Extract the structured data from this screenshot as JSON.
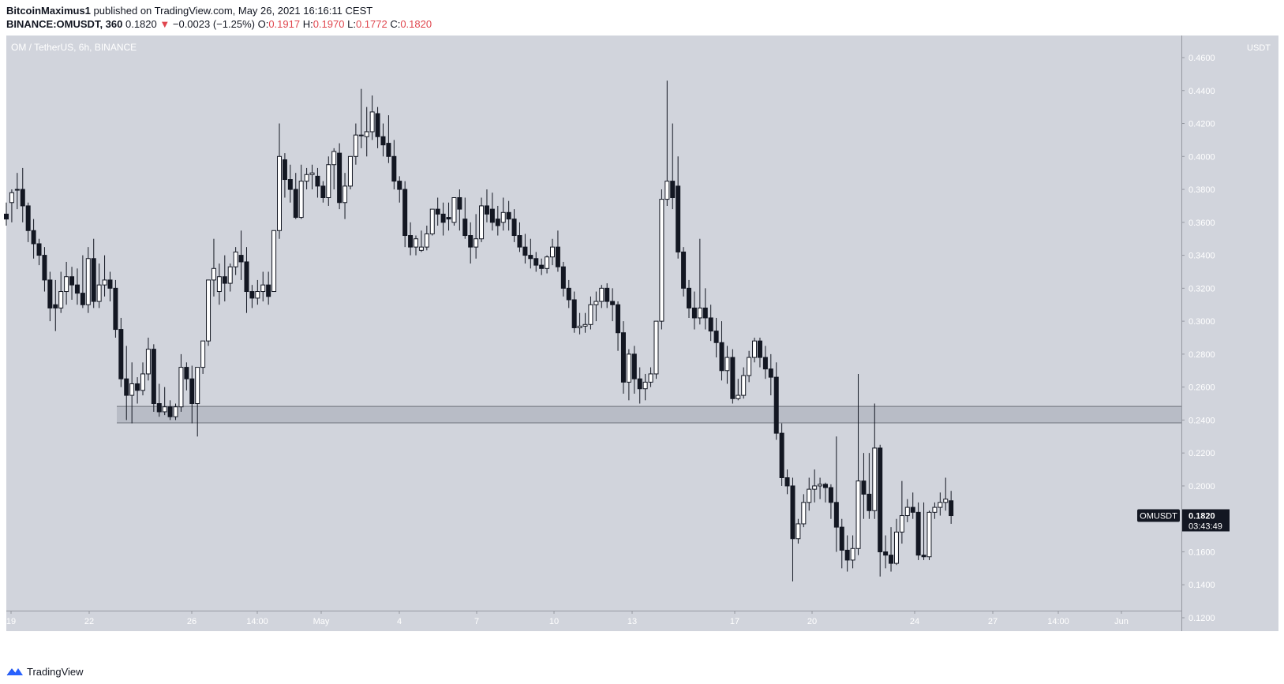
{
  "header": {
    "author": "BitcoinMaximus1",
    "published_text": "published on TradingView.com, May 26, 2021 16:16:11 CEST",
    "symbol": "BINANCE:OMUSDT, 360",
    "last_price": "0.1820",
    "arrow": "▼",
    "change": "−0.0023 (−1.25%)",
    "o_label": "O:",
    "o_value": "0.1917",
    "h_label": "H:",
    "h_value": "0.1970",
    "l_label": "L:",
    "l_value": "0.1772",
    "c_label": "C:",
    "c_value": "0.1820"
  },
  "footer": {
    "brand": "TradingView",
    "logo_icon": "tradingview-logo-icon"
  },
  "colors": {
    "chart_bg": "#d1d4dc",
    "axis_bg": "#d1d4dc",
    "candle_up": "#ffffff",
    "candle_down": "#131722",
    "zone": "#b8bcc6",
    "label_bg": "#131722"
  },
  "chart_data": {
    "type": "candlestick",
    "title": "OM / TetherUS, 6h, BINANCE",
    "y_unit": "USDT",
    "ylim": [
      0.11,
      0.47
    ],
    "y_ticks": [
      "0.4600",
      "0.4400",
      "0.4200",
      "0.4000",
      "0.3800",
      "0.3600",
      "0.3400",
      "0.3200",
      "0.3000",
      "0.2800",
      "0.2600",
      "0.2400",
      "0.2200",
      "0.2000",
      "0.1800",
      "0.1600",
      "0.1400",
      "0.1200"
    ],
    "x_ticks": [
      "19",
      "22",
      "26",
      "14:00",
      "May",
      "4",
      "7",
      "10",
      "13",
      "17",
      "20",
      "24",
      "27",
      "14:00",
      "Jun"
    ],
    "support_zone": [
      0.2385,
      0.2485
    ],
    "price_label": {
      "symbol": "OMUSDT",
      "price": "0.1820",
      "countdown": "03:43:49"
    },
    "candles": [
      [
        0.365,
        0.372,
        0.362,
        0.358
      ],
      [
        0.372,
        0.38,
        0.378,
        0.36
      ],
      [
        0.38,
        0.39,
        0.38,
        0.368
      ],
      [
        0.38,
        0.393,
        0.37,
        0.36
      ],
      [
        0.37,
        0.372,
        0.355,
        0.348
      ],
      [
        0.355,
        0.362,
        0.347,
        0.338
      ],
      [
        0.347,
        0.35,
        0.34,
        0.334
      ],
      [
        0.34,
        0.345,
        0.325,
        0.318
      ],
      [
        0.325,
        0.33,
        0.308,
        0.3
      ],
      [
        0.31,
        0.325,
        0.308,
        0.294
      ],
      [
        0.308,
        0.33,
        0.318,
        0.305
      ],
      [
        0.318,
        0.336,
        0.327,
        0.31
      ],
      [
        0.327,
        0.333,
        0.322,
        0.313
      ],
      [
        0.322,
        0.332,
        0.317,
        0.31
      ],
      [
        0.317,
        0.34,
        0.31,
        0.308
      ],
      [
        0.31,
        0.345,
        0.338,
        0.305
      ],
      [
        0.338,
        0.35,
        0.312,
        0.308
      ],
      [
        0.312,
        0.335,
        0.322,
        0.308
      ],
      [
        0.322,
        0.34,
        0.325,
        0.315
      ],
      [
        0.325,
        0.33,
        0.32,
        0.312
      ],
      [
        0.32,
        0.325,
        0.295,
        0.29
      ],
      [
        0.295,
        0.302,
        0.265,
        0.26
      ],
      [
        0.265,
        0.285,
        0.255,
        0.24
      ],
      [
        0.255,
        0.275,
        0.262,
        0.238
      ],
      [
        0.262,
        0.266,
        0.258,
        0.25
      ],
      [
        0.258,
        0.275,
        0.268,
        0.255
      ],
      [
        0.268,
        0.29,
        0.283,
        0.264
      ],
      [
        0.283,
        0.286,
        0.25,
        0.245
      ],
      [
        0.25,
        0.262,
        0.245,
        0.242
      ],
      [
        0.245,
        0.26,
        0.248,
        0.243
      ],
      [
        0.248,
        0.252,
        0.242,
        0.24
      ],
      [
        0.242,
        0.25,
        0.248,
        0.24
      ],
      [
        0.248,
        0.28,
        0.272,
        0.245
      ],
      [
        0.272,
        0.275,
        0.265,
        0.258
      ],
      [
        0.265,
        0.273,
        0.25,
        0.238
      ],
      [
        0.25,
        0.272,
        0.272,
        0.23
      ],
      [
        0.272,
        0.28,
        0.288,
        0.268
      ],
      [
        0.288,
        0.305,
        0.325,
        0.285
      ],
      [
        0.325,
        0.35,
        0.332,
        0.315
      ],
      [
        0.318,
        0.335,
        0.327,
        0.31
      ],
      [
        0.327,
        0.34,
        0.323,
        0.312
      ],
      [
        0.323,
        0.335,
        0.333,
        0.318
      ],
      [
        0.333,
        0.345,
        0.342,
        0.328
      ],
      [
        0.34,
        0.355,
        0.336,
        0.325
      ],
      [
        0.336,
        0.345,
        0.318,
        0.305
      ],
      [
        0.318,
        0.322,
        0.314,
        0.308
      ],
      [
        0.314,
        0.325,
        0.318,
        0.31
      ],
      [
        0.318,
        0.33,
        0.322,
        0.312
      ],
      [
        0.322,
        0.33,
        0.315,
        0.31
      ],
      [
        0.318,
        0.345,
        0.355,
        0.318
      ],
      [
        0.355,
        0.42,
        0.4,
        0.35
      ],
      [
        0.398,
        0.402,
        0.386,
        0.375
      ],
      [
        0.386,
        0.395,
        0.38,
        0.372
      ],
      [
        0.38,
        0.39,
        0.363,
        0.362
      ],
      [
        0.363,
        0.395,
        0.385,
        0.362
      ],
      [
        0.385,
        0.393,
        0.389,
        0.38
      ],
      [
        0.389,
        0.395,
        0.39,
        0.38
      ],
      [
        0.388,
        0.393,
        0.382,
        0.375
      ],
      [
        0.382,
        0.385,
        0.375,
        0.372
      ],
      [
        0.375,
        0.4,
        0.395,
        0.37
      ],
      [
        0.395,
        0.405,
        0.403,
        0.38
      ],
      [
        0.402,
        0.408,
        0.372,
        0.368
      ],
      [
        0.372,
        0.39,
        0.382,
        0.362
      ],
      [
        0.382,
        0.4,
        0.4,
        0.38
      ],
      [
        0.4,
        0.42,
        0.413,
        0.395
      ],
      [
        0.413,
        0.441,
        0.413,
        0.405
      ],
      [
        0.412,
        0.43,
        0.415,
        0.4
      ],
      [
        0.415,
        0.437,
        0.427,
        0.41
      ],
      [
        0.426,
        0.43,
        0.412,
        0.405
      ],
      [
        0.412,
        0.42,
        0.407,
        0.4
      ],
      [
        0.408,
        0.425,
        0.4,
        0.396
      ],
      [
        0.4,
        0.41,
        0.385,
        0.38
      ],
      [
        0.385,
        0.388,
        0.38,
        0.372
      ],
      [
        0.38,
        0.385,
        0.352,
        0.345
      ],
      [
        0.352,
        0.36,
        0.345,
        0.34
      ],
      [
        0.345,
        0.352,
        0.35,
        0.34
      ],
      [
        0.343,
        0.355,
        0.345,
        0.342
      ],
      [
        0.345,
        0.358,
        0.353,
        0.343
      ],
      [
        0.353,
        0.365,
        0.368,
        0.352
      ],
      [
        0.368,
        0.375,
        0.365,
        0.358
      ],
      [
        0.365,
        0.372,
        0.36,
        0.352
      ],
      [
        0.363,
        0.372,
        0.362,
        0.355
      ],
      [
        0.36,
        0.375,
        0.375,
        0.358
      ],
      [
        0.375,
        0.38,
        0.368,
        0.355
      ],
      [
        0.362,
        0.375,
        0.352,
        0.35
      ],
      [
        0.352,
        0.36,
        0.345,
        0.335
      ],
      [
        0.345,
        0.365,
        0.35,
        0.338
      ],
      [
        0.35,
        0.375,
        0.37,
        0.348
      ],
      [
        0.37,
        0.38,
        0.365,
        0.36
      ],
      [
        0.368,
        0.378,
        0.36,
        0.355
      ],
      [
        0.362,
        0.37,
        0.358,
        0.352
      ],
      [
        0.36,
        0.375,
        0.366,
        0.355
      ],
      [
        0.366,
        0.373,
        0.362,
        0.355
      ],
      [
        0.362,
        0.368,
        0.352,
        0.348
      ],
      [
        0.352,
        0.36,
        0.345,
        0.342
      ],
      [
        0.345,
        0.353,
        0.34,
        0.335
      ],
      [
        0.34,
        0.35,
        0.338,
        0.332
      ],
      [
        0.338,
        0.342,
        0.334,
        0.33
      ],
      [
        0.334,
        0.338,
        0.332,
        0.328
      ],
      [
        0.332,
        0.34,
        0.339,
        0.329
      ],
      [
        0.339,
        0.35,
        0.345,
        0.334
      ],
      [
        0.345,
        0.355,
        0.333,
        0.33
      ],
      [
        0.333,
        0.336,
        0.32,
        0.315
      ],
      [
        0.32,
        0.325,
        0.313,
        0.308
      ],
      [
        0.313,
        0.318,
        0.296,
        0.293
      ],
      [
        0.296,
        0.305,
        0.297,
        0.292
      ],
      [
        0.297,
        0.305,
        0.298,
        0.293
      ],
      [
        0.298,
        0.315,
        0.31,
        0.295
      ],
      [
        0.31,
        0.318,
        0.312,
        0.3
      ],
      [
        0.312,
        0.322,
        0.32,
        0.308
      ],
      [
        0.32,
        0.323,
        0.312,
        0.308
      ],
      [
        0.312,
        0.32,
        0.31,
        0.3
      ],
      [
        0.31,
        0.312,
        0.293,
        0.282
      ],
      [
        0.293,
        0.3,
        0.263,
        0.256
      ],
      [
        0.263,
        0.283,
        0.28,
        0.252
      ],
      [
        0.28,
        0.285,
        0.265,
        0.256
      ],
      [
        0.265,
        0.272,
        0.259,
        0.25
      ],
      [
        0.259,
        0.268,
        0.263,
        0.252
      ],
      [
        0.263,
        0.272,
        0.268,
        0.26
      ],
      [
        0.268,
        0.29,
        0.3,
        0.265
      ],
      [
        0.3,
        0.38,
        0.374,
        0.295
      ],
      [
        0.374,
        0.446,
        0.385,
        0.37
      ],
      [
        0.385,
        0.42,
        0.375,
        0.368
      ],
      [
        0.382,
        0.4,
        0.342,
        0.338
      ],
      [
        0.342,
        0.345,
        0.32,
        0.315
      ],
      [
        0.32,
        0.325,
        0.308,
        0.302
      ],
      [
        0.308,
        0.318,
        0.302,
        0.295
      ],
      [
        0.302,
        0.35,
        0.308,
        0.298
      ],
      [
        0.308,
        0.32,
        0.302,
        0.295
      ],
      [
        0.302,
        0.31,
        0.294,
        0.288
      ],
      [
        0.294,
        0.302,
        0.287,
        0.278
      ],
      [
        0.287,
        0.3,
        0.27,
        0.264
      ],
      [
        0.27,
        0.285,
        0.278,
        0.262
      ],
      [
        0.278,
        0.283,
        0.253,
        0.25
      ],
      [
        0.253,
        0.265,
        0.255,
        0.252
      ],
      [
        0.255,
        0.272,
        0.267,
        0.253
      ],
      [
        0.267,
        0.282,
        0.278,
        0.263
      ],
      [
        0.278,
        0.29,
        0.288,
        0.275
      ],
      [
        0.288,
        0.29,
        0.278,
        0.272
      ],
      [
        0.278,
        0.285,
        0.271,
        0.265
      ],
      [
        0.271,
        0.28,
        0.266,
        0.255
      ],
      [
        0.266,
        0.275,
        0.232,
        0.228
      ],
      [
        0.232,
        0.238,
        0.205,
        0.2
      ],
      [
        0.205,
        0.21,
        0.2,
        0.195
      ],
      [
        0.2,
        0.205,
        0.168,
        0.142
      ],
      [
        0.168,
        0.18,
        0.177,
        0.165
      ],
      [
        0.177,
        0.195,
        0.19,
        0.175
      ],
      [
        0.19,
        0.205,
        0.198,
        0.185
      ],
      [
        0.198,
        0.21,
        0.2,
        0.19
      ],
      [
        0.2,
        0.205,
        0.201,
        0.192
      ],
      [
        0.201,
        0.202,
        0.199,
        0.19
      ],
      [
        0.199,
        0.201,
        0.19,
        0.18
      ],
      [
        0.19,
        0.23,
        0.175,
        0.16
      ],
      [
        0.175,
        0.18,
        0.161,
        0.15
      ],
      [
        0.161,
        0.17,
        0.155,
        0.148
      ],
      [
        0.155,
        0.17,
        0.162,
        0.15
      ],
      [
        0.162,
        0.268,
        0.203,
        0.158
      ],
      [
        0.203,
        0.22,
        0.195,
        0.18
      ],
      [
        0.195,
        0.22,
        0.185,
        0.18
      ],
      [
        0.185,
        0.25,
        0.223,
        0.18
      ],
      [
        0.223,
        0.225,
        0.16,
        0.145
      ],
      [
        0.16,
        0.17,
        0.158,
        0.15
      ],
      [
        0.158,
        0.175,
        0.153,
        0.148
      ],
      [
        0.153,
        0.18,
        0.172,
        0.152
      ],
      [
        0.172,
        0.203,
        0.182,
        0.165
      ],
      [
        0.182,
        0.192,
        0.187,
        0.178
      ],
      [
        0.187,
        0.196,
        0.184,
        0.18
      ],
      [
        0.184,
        0.19,
        0.158,
        0.155
      ],
      [
        0.158,
        0.19,
        0.157,
        0.155
      ],
      [
        0.157,
        0.185,
        0.184,
        0.155
      ],
      [
        0.184,
        0.19,
        0.187,
        0.18
      ],
      [
        0.187,
        0.196,
        0.19,
        0.182
      ],
      [
        0.19,
        0.205,
        0.192,
        0.185
      ],
      [
        0.191,
        0.197,
        0.182,
        0.177
      ]
    ]
  }
}
